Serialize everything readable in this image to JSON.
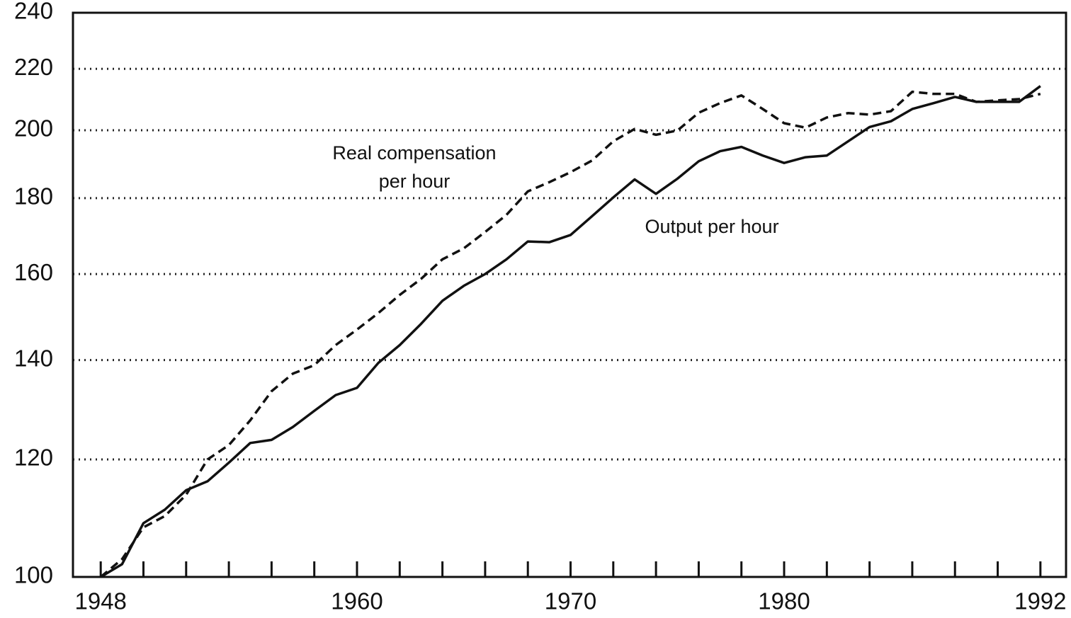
{
  "chart_data": {
    "type": "line",
    "x": [
      1948,
      1949,
      1950,
      1951,
      1952,
      1953,
      1954,
      1955,
      1956,
      1957,
      1958,
      1959,
      1960,
      1961,
      1962,
      1963,
      1964,
      1965,
      1966,
      1967,
      1968,
      1969,
      1970,
      1971,
      1972,
      1973,
      1974,
      1975,
      1976,
      1977,
      1978,
      1979,
      1980,
      1981,
      1982,
      1983,
      1984,
      1985,
      1986,
      1987,
      1988,
      1989,
      1990,
      1991,
      1992
    ],
    "series": [
      {
        "name": "Real compensation per hour",
        "color": "#111",
        "dash": true,
        "values": [
          100,
          102.8,
          108,
          109.9,
          113.6,
          120,
          122.7,
          127.5,
          133.4,
          137.1,
          138.9,
          143.3,
          146.8,
          150.6,
          154.9,
          158.8,
          163.7,
          166.5,
          170.8,
          175.4,
          181.9,
          184.5,
          187.4,
          190.8,
          196.6,
          200.4,
          198.6,
          199.9,
          205.5,
          208.6,
          211.1,
          206.7,
          202.2,
          200.8,
          204,
          205.4,
          204.9,
          206,
          212.3,
          211.6,
          211.6,
          209,
          209.5,
          209.9,
          211.6
        ]
      },
      {
        "name": "Output per hour",
        "color": "#111",
        "dash": false,
        "values": [
          100,
          102,
          108.7,
          111,
          114.4,
          116,
          119.4,
          123.1,
          123.7,
          126.2,
          129.4,
          132.6,
          134.1,
          139.4,
          143.3,
          148.1,
          153.5,
          157.1,
          160,
          163.7,
          168.3,
          168.1,
          170,
          175,
          180.2,
          185.3,
          181.2,
          185.5,
          190.6,
          193.6,
          194.9,
          192.3,
          190.1,
          191.8,
          192.3,
          196.6,
          201,
          202.8,
          206.7,
          208.6,
          210.6,
          209,
          209,
          209,
          214.2
        ]
      }
    ],
    "xlim": [
      1946.7,
      1993.2
    ],
    "xticks": [
      1948,
      1960,
      1970,
      1980,
      1992
    ],
    "xminorticks": [
      1950,
      1952,
      1954,
      1956,
      1958,
      1962,
      1964,
      1966,
      1968,
      1972,
      1974,
      1976,
      1978,
      1982,
      1984,
      1986,
      1988,
      1990
    ],
    "ylim": [
      100,
      240
    ],
    "yticks": [
      100,
      120,
      140,
      160,
      180,
      200,
      220,
      240
    ],
    "log_y": true,
    "grid": true
  }
}
